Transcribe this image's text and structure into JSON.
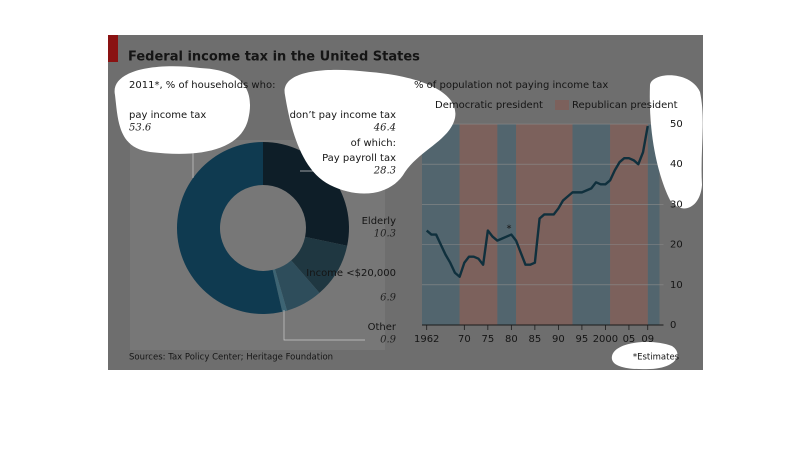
{
  "title": "Federal income tax in the United States",
  "source": "Sources: Tax Policy Center; Heritage Foundation",
  "chart_data": [
    {
      "type": "pie",
      "subtitle": "2011*, % of households who:",
      "categories": [
        "Pay payroll tax",
        "Elderly",
        "Income <$20,000",
        "Other",
        "pay income tax"
      ],
      "values": [
        28.3,
        10.3,
        6.9,
        0.9,
        53.6
      ],
      "colors": [
        "#0e1e28",
        "#1f3741",
        "#2e4d5b",
        "#3d6473",
        "#0f3a50"
      ],
      "group": {
        "label": "don’t pay income tax",
        "value": 46.4,
        "sublabel": "of which:"
      }
    },
    {
      "type": "line",
      "title": "% of population not paying income tax",
      "shading": [
        {
          "name": "Democratic president",
          "color": "#52656e",
          "periods": [
            [
              1961,
              1969
            ],
            [
              1977,
              1981
            ],
            [
              1993,
              2001
            ],
            [
              2009,
              2011.5
            ]
          ]
        },
        {
          "name": "Republican president",
          "color": "#7c615c",
          "periods": [
            [
              1969,
              1977
            ],
            [
              1981,
              1993
            ],
            [
              2001,
              2009
            ]
          ]
        }
      ],
      "x": [
        1962,
        1963,
        1964,
        1965,
        1966,
        1967,
        1968,
        1969,
        1970,
        1971,
        1972,
        1973,
        1974,
        1975,
        1976,
        1977,
        1978,
        1979,
        1980,
        1981,
        1982,
        1983,
        1984,
        1985,
        1986,
        1987,
        1988,
        1989,
        1990,
        1991,
        1992,
        1993,
        1994,
        1995,
        1996,
        1997,
        1998,
        1999,
        2000,
        2001,
        2002,
        2003,
        2004,
        2005,
        2006,
        2007,
        2008,
        2009
      ],
      "series": [
        {
          "name": "% of population not paying income tax",
          "color": "#10303d",
          "values": [
            23.5,
            22.5,
            22.5,
            20,
            17.5,
            15.5,
            13,
            12,
            15.5,
            17,
            17,
            16.5,
            15,
            23.5,
            22,
            21,
            21.5,
            22,
            22.5,
            21,
            18,
            15,
            15,
            15.5,
            26.5,
            27.5,
            27.5,
            27.5,
            29,
            31,
            32,
            33,
            33,
            33,
            33.5,
            34,
            35.5,
            35,
            35,
            36,
            38.5,
            40.5,
            41.5,
            41.5,
            41,
            40,
            43,
            49.5
          ]
        }
      ],
      "xlim": [
        1961,
        2011.5
      ],
      "ylim": [
        0,
        52
      ],
      "yticks": [
        0,
        10,
        20,
        30,
        40,
        50
      ],
      "xticks": [
        {
          "value": 1962,
          "label": "1962"
        },
        {
          "value": 1970,
          "label": "70"
        },
        {
          "value": 1975,
          "label": "75"
        },
        {
          "value": 1980,
          "label": "80"
        },
        {
          "value": 1985,
          "label": "85"
        },
        {
          "value": 1990,
          "label": "90"
        },
        {
          "value": 1995,
          "label": "95"
        },
        {
          "value": 2000,
          "label": "2000"
        },
        {
          "value": 2005,
          "label": "05"
        },
        {
          "value": 2009,
          "label": "09"
        }
      ],
      "grid": true,
      "annotations": [
        {
          "text": "*",
          "x": 1979.5,
          "y": 24
        }
      ],
      "note": "*Estimates"
    }
  ]
}
